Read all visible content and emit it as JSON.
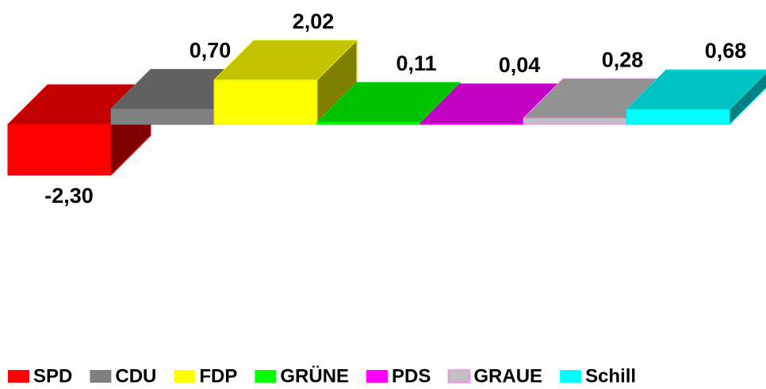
{
  "chart_data": {
    "type": "bar3d",
    "categories": [
      "SPD",
      "CDU",
      "FDP",
      "GRÜNE",
      "PDS",
      "GRAUE",
      "Schill"
    ],
    "values": [
      -2.3,
      0.7,
      2.02,
      0.11,
      0.04,
      0.28,
      0.68
    ],
    "value_labels": [
      "-2,30",
      "0,70",
      "2,02",
      "0,11",
      "0,04",
      "0,28",
      "0,68"
    ],
    "colors": [
      "#ff0000",
      "#808080",
      "#ffff00",
      "#00ff00",
      "#ff00ff",
      "#c0c0c0",
      "#00ffff"
    ]
  }
}
